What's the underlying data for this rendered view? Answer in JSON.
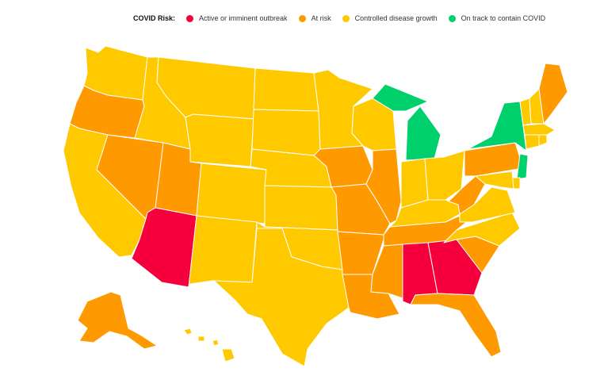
{
  "legend": {
    "title": "COVID Risk:",
    "items": [
      {
        "label": "Active or imminent outbreak",
        "color": "#f5003c"
      },
      {
        "label": "At risk",
        "color": "#ff9900"
      },
      {
        "label": "Controlled disease growth",
        "color": "#ffc900"
      },
      {
        "label": "On track to contain COVID",
        "color": "#00d06c"
      }
    ]
  },
  "states": {
    "WA": "controlled",
    "OR": "at_risk",
    "CA": "controlled",
    "NV": "at_risk",
    "ID": "controlled",
    "MT": "controlled",
    "WY": "controlled",
    "UT": "at_risk",
    "AZ": "outbreak",
    "CO": "controlled",
    "NM": "controlled",
    "ND": "controlled",
    "SD": "controlled",
    "NE": "controlled",
    "KS": "controlled",
    "OK": "controlled",
    "TX": "controlled",
    "MN": "controlled",
    "IA": "at_risk",
    "MO": "at_risk",
    "AR": "at_risk",
    "LA": "at_risk",
    "WI": "controlled",
    "IL": "at_risk",
    "MI": "on_track",
    "IN": "controlled",
    "OH": "controlled",
    "KY": "controlled",
    "TN": "at_risk",
    "MS": "at_risk",
    "AL": "outbreak",
    "GA": "outbreak",
    "FL": "at_risk",
    "SC": "at_risk",
    "NC": "controlled",
    "VA": "controlled",
    "WV": "at_risk",
    "PA": "at_risk",
    "NY": "on_track",
    "VT": "controlled",
    "NH": "controlled",
    "ME": "at_risk",
    "MA": "controlled",
    "CT": "controlled",
    "RI": "controlled",
    "NJ": "on_track",
    "DE": "controlled",
    "MD": "controlled",
    "AK": "at_risk",
    "HI": "controlled"
  },
  "status_colors": {
    "outbreak": "#f5003c",
    "at_risk": "#ff9900",
    "controlled": "#ffc900",
    "on_track": "#00d06c"
  }
}
